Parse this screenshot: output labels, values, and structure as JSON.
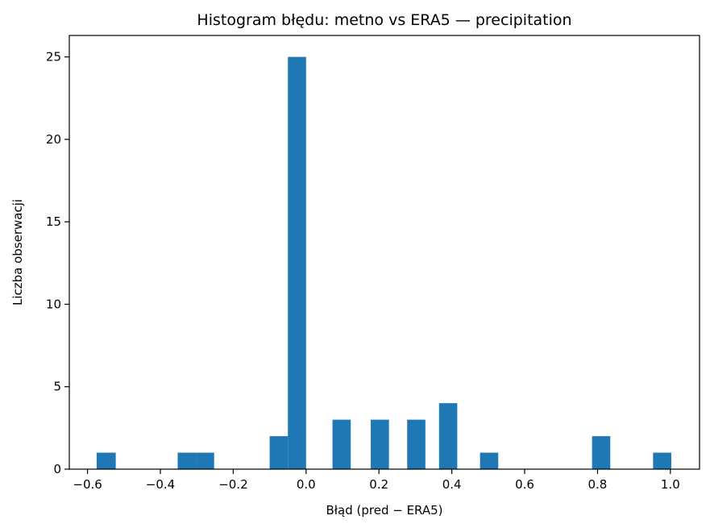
{
  "chart_data": {
    "type": "histogram",
    "title": "Histogram błędu: metno vs ERA5 — precipitation",
    "xlabel": "Błąd (pred − ERA5)",
    "ylabel": "Liczba obserwacji",
    "xlim": [
      -0.65,
      1.08
    ],
    "ylim": [
      0,
      26.3
    ],
    "xticks": [
      -0.6,
      -0.4,
      -0.2,
      0.0,
      0.2,
      0.4,
      0.6,
      0.8,
      1.0
    ],
    "xtick_labels": [
      "−0.6",
      "−0.4",
      "−0.2",
      "0.0",
      "0.2",
      "0.4",
      "0.6",
      "0.8",
      "1.0"
    ],
    "yticks": [
      0,
      5,
      10,
      15,
      20,
      25
    ],
    "ytick_labels": [
      "0",
      "5",
      "10",
      "15",
      "20",
      "25"
    ],
    "bar_color": "#1f77b4",
    "grid": false,
    "bins": [
      {
        "x0": -0.575,
        "x1": -0.5225,
        "count": 1
      },
      {
        "x0": -0.3525,
        "x1": -0.3025,
        "count": 1
      },
      {
        "x0": -0.3025,
        "x1": -0.2525,
        "count": 1
      },
      {
        "x0": -0.1,
        "x1": -0.05,
        "count": 2
      },
      {
        "x0": -0.05,
        "x1": 0.0,
        "count": 25
      },
      {
        "x0": 0.0725,
        "x1": 0.1225,
        "count": 3
      },
      {
        "x0": 0.1775,
        "x1": 0.2275,
        "count": 3
      },
      {
        "x0": 0.2775,
        "x1": 0.3275,
        "count": 3
      },
      {
        "x0": 0.365,
        "x1": 0.415,
        "count": 4
      },
      {
        "x0": 0.4775,
        "x1": 0.5275,
        "count": 1
      },
      {
        "x0": 0.785,
        "x1": 0.835,
        "count": 2
      },
      {
        "x0": 0.9525,
        "x1": 1.0025,
        "count": 1
      }
    ]
  }
}
